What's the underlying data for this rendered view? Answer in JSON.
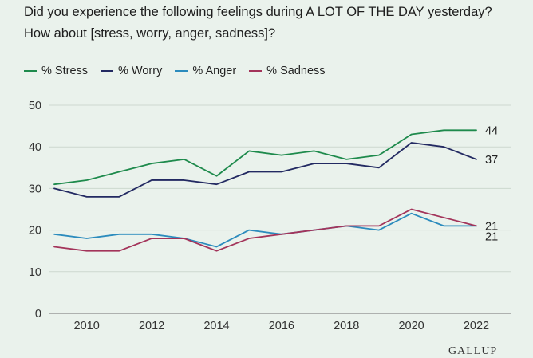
{
  "title": "Did you experience the following feelings during A LOT OF THE DAY yesterday? How about [stress, worry, anger, sadness]?",
  "footer": {
    "logo_text": "GALLUP"
  },
  "chart_data": {
    "type": "line",
    "title": "Did you experience the following feelings during A LOT OF THE DAY yesterday? How about [stress, worry, anger, sadness]?",
    "xlabel": "",
    "ylabel": "",
    "x": [
      2009,
      2010,
      2011,
      2012,
      2013,
      2014,
      2015,
      2016,
      2017,
      2018,
      2019,
      2020,
      2021,
      2022
    ],
    "xlim": [
      2009,
      2022
    ],
    "ylim": [
      0,
      50
    ],
    "xticks": [
      2010,
      2012,
      2014,
      2016,
      2018,
      2020,
      2022
    ],
    "yticks": [
      0,
      10,
      20,
      30,
      40,
      50
    ],
    "grid": "horizontal",
    "legend_position": "top-left",
    "series": [
      {
        "name": "% Stress",
        "color": "#1e8a4c",
        "values": [
          31,
          32,
          34,
          36,
          37,
          33,
          39,
          38,
          39,
          37,
          38,
          43,
          44,
          44
        ],
        "end_label": "44"
      },
      {
        "name": "% Worry",
        "color": "#232a62",
        "values": [
          30,
          28,
          28,
          32,
          32,
          31,
          34,
          34,
          36,
          36,
          35,
          41,
          40,
          37
        ],
        "end_label": "37"
      },
      {
        "name": "% Anger",
        "color": "#2b8bbd",
        "values": [
          19,
          18,
          19,
          19,
          18,
          16,
          20,
          19,
          20,
          21,
          20,
          24,
          21,
          21
        ],
        "end_label": "21"
      },
      {
        "name": "% Sadness",
        "color": "#a3345a",
        "values": [
          16,
          15,
          15,
          18,
          18,
          15,
          18,
          19,
          20,
          21,
          21,
          25,
          23,
          21
        ],
        "end_label": "21"
      }
    ]
  }
}
